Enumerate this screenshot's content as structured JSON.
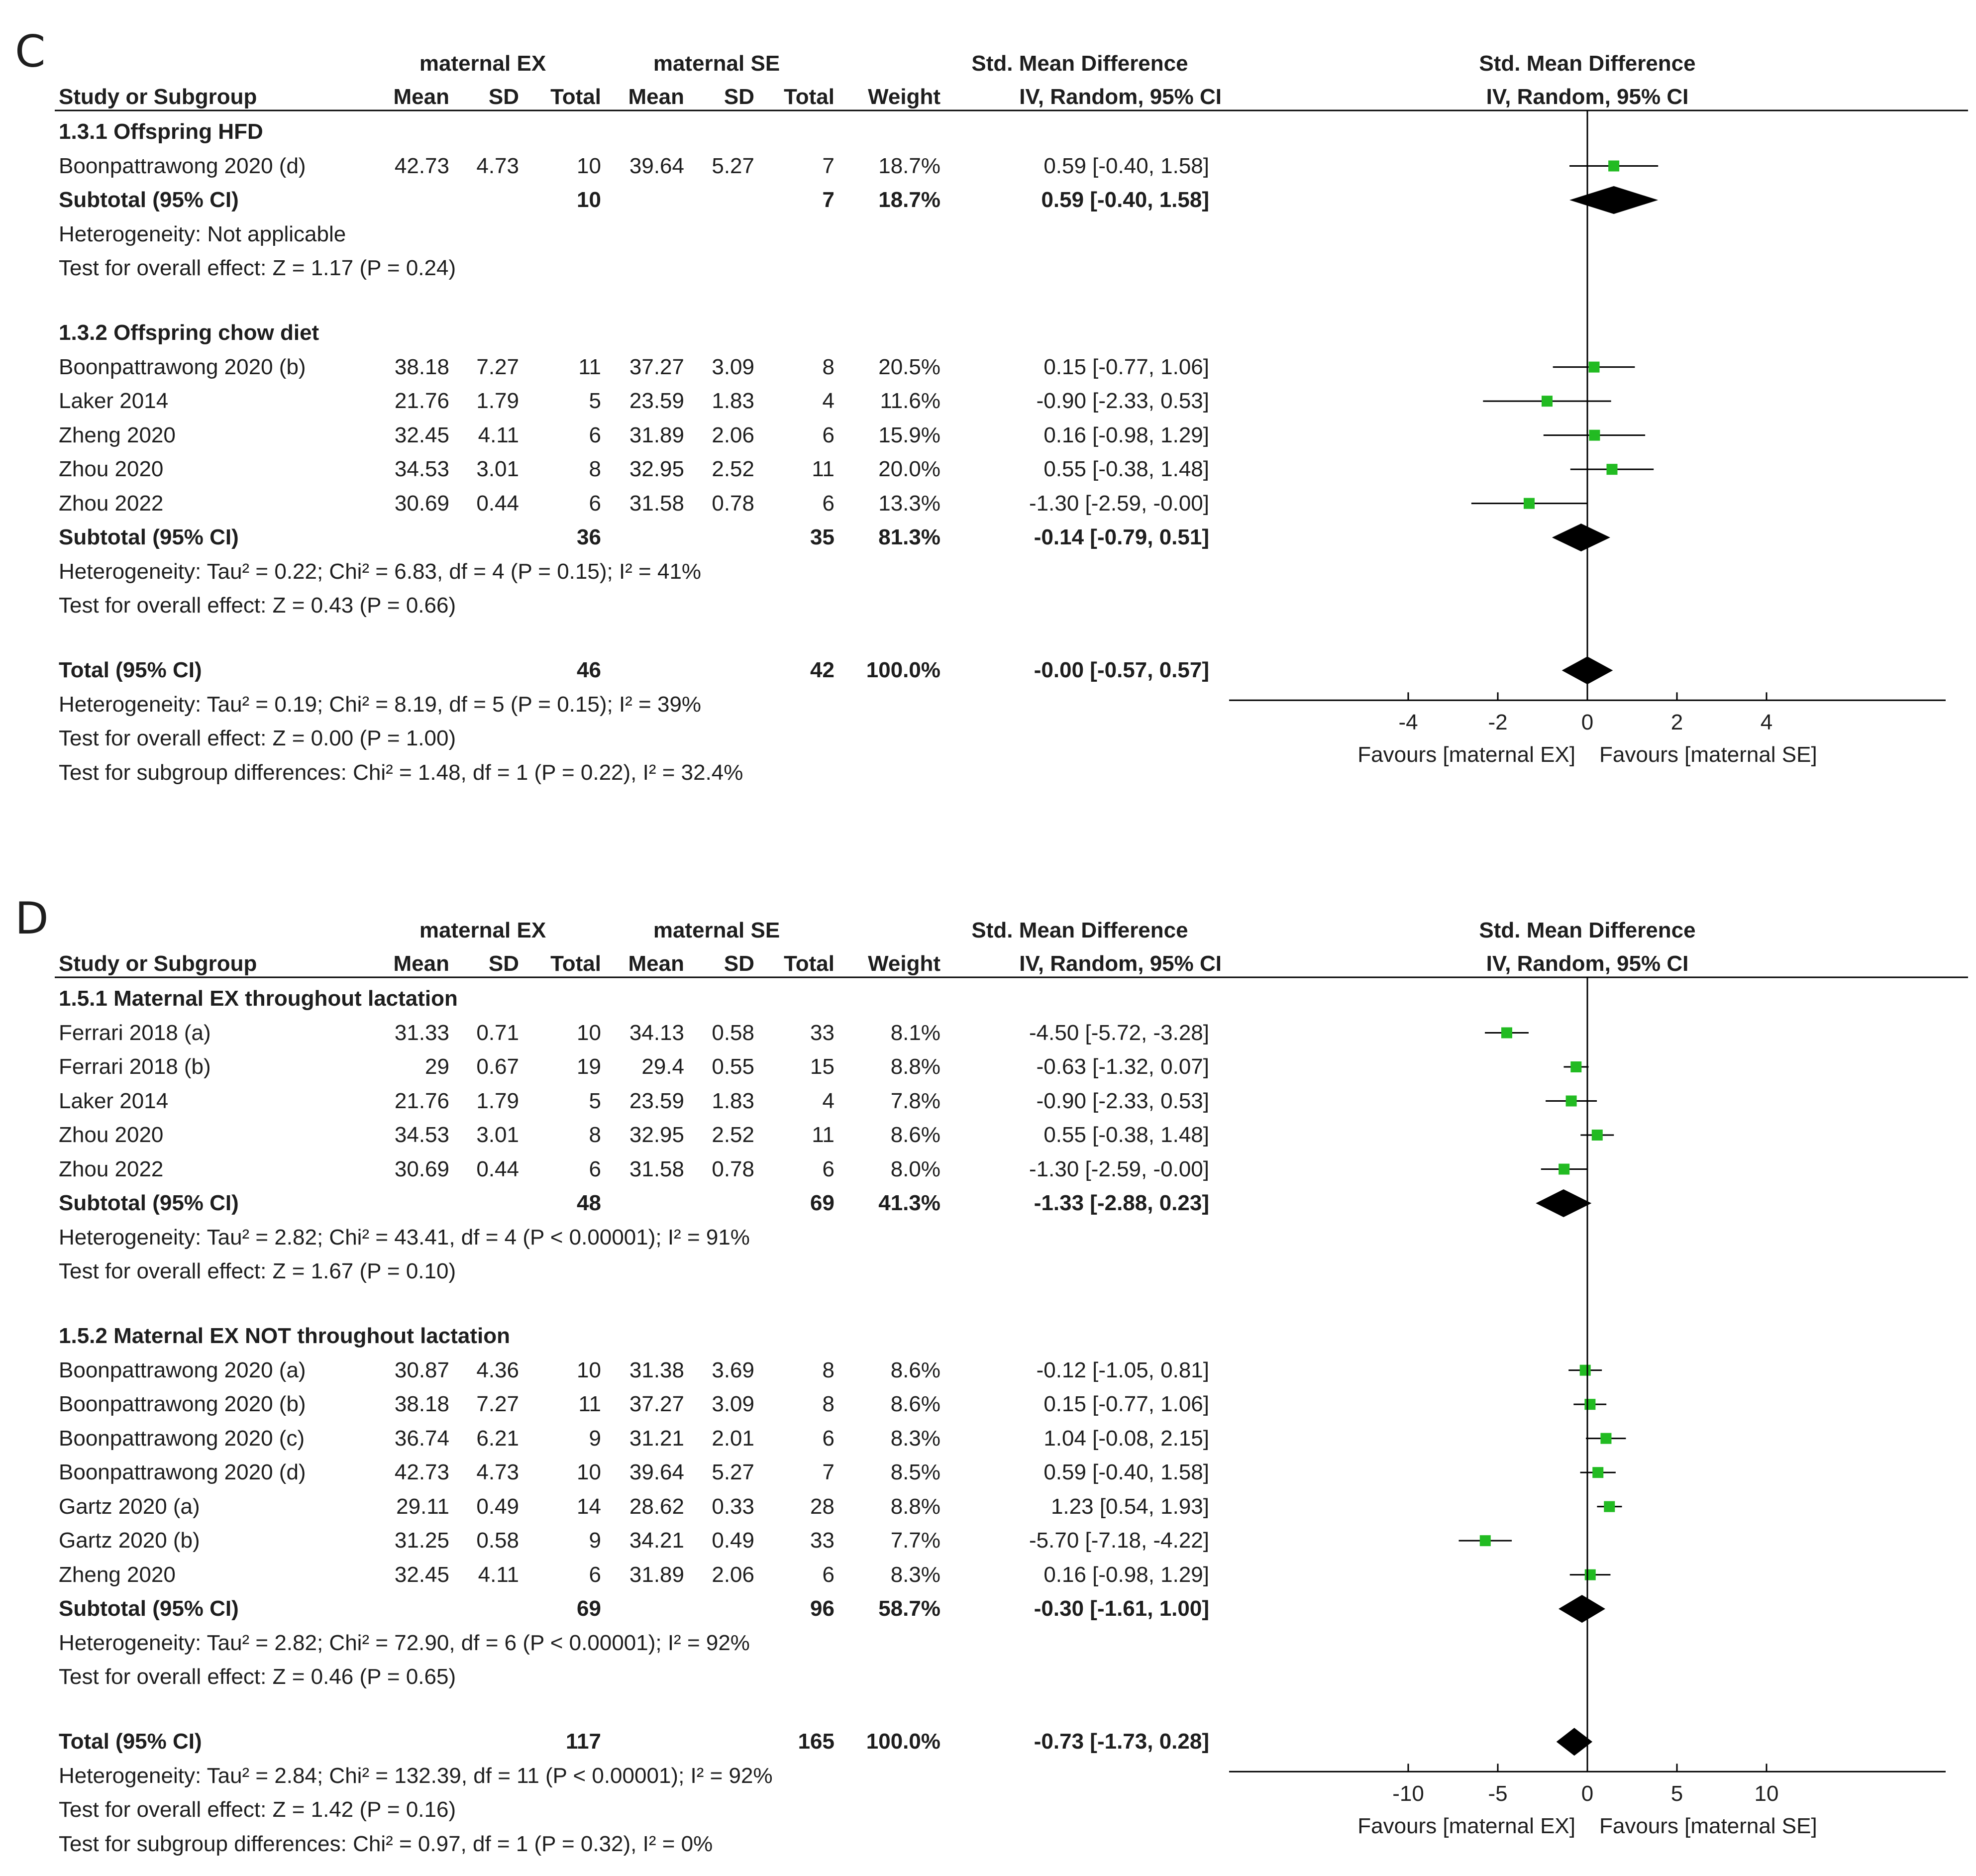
{
  "chart_data": [
    {
      "type": "forest",
      "panel_label": "C",
      "header": {
        "group1": "maternal EX",
        "group2": "maternal SE",
        "effect_col_line1": "Std. Mean Difference",
        "effect_col_line2": "IV, Random, 95% CI",
        "plot_col_line1": "Std. Mean Difference",
        "plot_col_line2": "IV, Random, 95% CI",
        "study_col": "Study or Subgroup",
        "mean": "Mean",
        "sd": "SD",
        "total": "Total",
        "weight": "Weight"
      },
      "axis": {
        "range": [
          -8,
          8
        ],
        "ticks": [
          -4,
          -2,
          0,
          2,
          4
        ],
        "tick_labels": [
          "-4",
          "-2",
          "0",
          "2",
          "4"
        ],
        "favours_left": "Favours [maternal EX]",
        "favours_right": "Favours [maternal SE]"
      },
      "rows": [
        {
          "kind": "subgroup",
          "label": "1.3.1 Offspring HFD"
        },
        {
          "kind": "study",
          "name": "Boonpattrawong 2020 (d)",
          "m1": "42.73",
          "sd1": "4.73",
          "n1": "10",
          "m2": "39.64",
          "sd2": "5.27",
          "n2": "7",
          "weight": "18.7%",
          "ci": "0.59 [-0.40, 1.58]",
          "est": 0.59,
          "lo": -0.4,
          "hi": 1.58
        },
        {
          "kind": "subtotal",
          "name": "Subtotal (95% CI)",
          "n1": "10",
          "n2": "7",
          "weight": "18.7%",
          "ci": "0.59 [-0.40, 1.58]",
          "est": 0.59,
          "lo": -0.4,
          "hi": 1.58
        },
        {
          "kind": "note",
          "text": "Heterogeneity: Not applicable"
        },
        {
          "kind": "note",
          "text": "Test for overall effect: Z = 1.17 (P = 0.24)"
        },
        {
          "kind": "subgroup",
          "label": "1.3.2 Offspring chow diet"
        },
        {
          "kind": "study",
          "name": "Boonpattrawong 2020 (b)",
          "m1": "38.18",
          "sd1": "7.27",
          "n1": "11",
          "m2": "37.27",
          "sd2": "3.09",
          "n2": "8",
          "weight": "20.5%",
          "ci": "0.15 [-0.77, 1.06]",
          "est": 0.15,
          "lo": -0.77,
          "hi": 1.06
        },
        {
          "kind": "study",
          "name": "Laker 2014",
          "m1": "21.76",
          "sd1": "1.79",
          "n1": "5",
          "m2": "23.59",
          "sd2": "1.83",
          "n2": "4",
          "weight": "11.6%",
          "ci": "-0.90 [-2.33, 0.53]",
          "est": -0.9,
          "lo": -2.33,
          "hi": 0.53
        },
        {
          "kind": "study",
          "name": "Zheng 2020",
          "m1": "32.45",
          "sd1": "4.11",
          "n1": "6",
          "m2": "31.89",
          "sd2": "2.06",
          "n2": "6",
          "weight": "15.9%",
          "ci": "0.16 [-0.98, 1.29]",
          "est": 0.16,
          "lo": -0.98,
          "hi": 1.29
        },
        {
          "kind": "study",
          "name": "Zhou 2020",
          "m1": "34.53",
          "sd1": "3.01",
          "n1": "8",
          "m2": "32.95",
          "sd2": "2.52",
          "n2": "11",
          "weight": "20.0%",
          "ci": "0.55 [-0.38, 1.48]",
          "est": 0.55,
          "lo": -0.38,
          "hi": 1.48
        },
        {
          "kind": "study",
          "name": "Zhou 2022",
          "m1": "30.69",
          "sd1": "0.44",
          "n1": "6",
          "m2": "31.58",
          "sd2": "0.78",
          "n2": "6",
          "weight": "13.3%",
          "ci": "-1.30 [-2.59, -0.00]",
          "est": -1.3,
          "lo": -2.59,
          "hi": 0.0
        },
        {
          "kind": "subtotal",
          "name": "Subtotal (95% CI)",
          "n1": "36",
          "n2": "35",
          "weight": "81.3%",
          "ci": "-0.14 [-0.79, 0.51]",
          "est": -0.14,
          "lo": -0.79,
          "hi": 0.51
        },
        {
          "kind": "note",
          "text": "Heterogeneity: Tau² = 0.22; Chi² = 6.83, df = 4 (P = 0.15); I² = 41%"
        },
        {
          "kind": "note",
          "text": "Test for overall effect: Z = 0.43 (P = 0.66)"
        },
        {
          "kind": "total",
          "name": "Total (95% CI)",
          "n1": "46",
          "n2": "42",
          "weight": "100.0%",
          "ci": "-0.00 [-0.57, 0.57]",
          "est": 0.0,
          "lo": -0.57,
          "hi": 0.57
        },
        {
          "kind": "note",
          "text": "Heterogeneity: Tau² = 0.19; Chi² = 8.19, df = 5 (P = 0.15); I² = 39%"
        },
        {
          "kind": "note",
          "text": "Test for overall effect: Z = 0.00 (P = 1.00)"
        },
        {
          "kind": "note",
          "text": "Test for subgroup differences: Chi² = 1.48, df = 1 (P = 0.22), I² = 32.4%"
        }
      ]
    },
    {
      "type": "forest",
      "panel_label": "D",
      "header": {
        "group1": "maternal EX",
        "group2": "maternal SE",
        "effect_col_line1": "Std. Mean Difference",
        "effect_col_line2": "IV, Random, 95% CI",
        "plot_col_line1": "Std. Mean Difference",
        "plot_col_line2": "IV, Random, 95% CI",
        "study_col": "Study or Subgroup",
        "mean": "Mean",
        "sd": "SD",
        "total": "Total",
        "weight": "Weight"
      },
      "axis": {
        "range": [
          -20,
          20
        ],
        "ticks": [
          -10,
          -5,
          0,
          5,
          10
        ],
        "tick_labels": [
          "-10",
          "-5",
          "0",
          "5",
          "10"
        ],
        "favours_left": "Favours [maternal EX]",
        "favours_right": "Favours [maternal SE]"
      },
      "rows": [
        {
          "kind": "subgroup",
          "label": "1.5.1 Maternal EX throughout lactation"
        },
        {
          "kind": "study",
          "name": "Ferrari 2018 (a)",
          "m1": "31.33",
          "sd1": "0.71",
          "n1": "10",
          "m2": "34.13",
          "sd2": "0.58",
          "n2": "33",
          "weight": "8.1%",
          "ci": "-4.50 [-5.72, -3.28]",
          "est": -4.5,
          "lo": -5.72,
          "hi": -3.28
        },
        {
          "kind": "study",
          "name": "Ferrari 2018 (b)",
          "m1": "29",
          "sd1": "0.67",
          "n1": "19",
          "m2": "29.4",
          "sd2": "0.55",
          "n2": "15",
          "weight": "8.8%",
          "ci": "-0.63 [-1.32, 0.07]",
          "est": -0.63,
          "lo": -1.32,
          "hi": 0.07
        },
        {
          "kind": "study",
          "name": "Laker 2014",
          "m1": "21.76",
          "sd1": "1.79",
          "n1": "5",
          "m2": "23.59",
          "sd2": "1.83",
          "n2": "4",
          "weight": "7.8%",
          "ci": "-0.90 [-2.33, 0.53]",
          "est": -0.9,
          "lo": -2.33,
          "hi": 0.53
        },
        {
          "kind": "study",
          "name": "Zhou 2020",
          "m1": "34.53",
          "sd1": "3.01",
          "n1": "8",
          "m2": "32.95",
          "sd2": "2.52",
          "n2": "11",
          "weight": "8.6%",
          "ci": "0.55 [-0.38, 1.48]",
          "est": 0.55,
          "lo": -0.38,
          "hi": 1.48
        },
        {
          "kind": "study",
          "name": "Zhou 2022",
          "m1": "30.69",
          "sd1": "0.44",
          "n1": "6",
          "m2": "31.58",
          "sd2": "0.78",
          "n2": "6",
          "weight": "8.0%",
          "ci": "-1.30 [-2.59, -0.00]",
          "est": -1.3,
          "lo": -2.59,
          "hi": 0.0
        },
        {
          "kind": "subtotal",
          "name": "Subtotal (95% CI)",
          "n1": "48",
          "n2": "69",
          "weight": "41.3%",
          "ci": "-1.33 [-2.88, 0.23]",
          "est": -1.33,
          "lo": -2.88,
          "hi": 0.23
        },
        {
          "kind": "note",
          "text": "Heterogeneity: Tau² = 2.82; Chi² = 43.41, df = 4 (P < 0.00001); I² = 91%"
        },
        {
          "kind": "note",
          "text": "Test for overall effect: Z = 1.67 (P = 0.10)"
        },
        {
          "kind": "subgroup",
          "label": "1.5.2 Maternal EX NOT throughout lactation"
        },
        {
          "kind": "study",
          "name": "Boonpattrawong 2020 (a)",
          "m1": "30.87",
          "sd1": "4.36",
          "n1": "10",
          "m2": "31.38",
          "sd2": "3.69",
          "n2": "8",
          "weight": "8.6%",
          "ci": "-0.12 [-1.05, 0.81]",
          "est": -0.12,
          "lo": -1.05,
          "hi": 0.81
        },
        {
          "kind": "study",
          "name": "Boonpattrawong 2020 (b)",
          "m1": "38.18",
          "sd1": "7.27",
          "n1": "11",
          "m2": "37.27",
          "sd2": "3.09",
          "n2": "8",
          "weight": "8.6%",
          "ci": "0.15 [-0.77, 1.06]",
          "est": 0.15,
          "lo": -0.77,
          "hi": 1.06
        },
        {
          "kind": "study",
          "name": "Boonpattrawong 2020 (c)",
          "m1": "36.74",
          "sd1": "6.21",
          "n1": "9",
          "m2": "31.21",
          "sd2": "2.01",
          "n2": "6",
          "weight": "8.3%",
          "ci": "1.04 [-0.08, 2.15]",
          "est": 1.04,
          "lo": -0.08,
          "hi": 2.15
        },
        {
          "kind": "study",
          "name": "Boonpattrawong 2020 (d)",
          "m1": "42.73",
          "sd1": "4.73",
          "n1": "10",
          "m2": "39.64",
          "sd2": "5.27",
          "n2": "7",
          "weight": "8.5%",
          "ci": "0.59 [-0.40, 1.58]",
          "est": 0.59,
          "lo": -0.4,
          "hi": 1.58
        },
        {
          "kind": "study",
          "name": "Gartz 2020 (a)",
          "m1": "29.11",
          "sd1": "0.49",
          "n1": "14",
          "m2": "28.62",
          "sd2": "0.33",
          "n2": "28",
          "weight": "8.8%",
          "ci": "1.23 [0.54, 1.93]",
          "est": 1.23,
          "lo": 0.54,
          "hi": 1.93
        },
        {
          "kind": "study",
          "name": "Gartz 2020 (b)",
          "m1": "31.25",
          "sd1": "0.58",
          "n1": "9",
          "m2": "34.21",
          "sd2": "0.49",
          "n2": "33",
          "weight": "7.7%",
          "ci": "-5.70 [-7.18, -4.22]",
          "est": -5.7,
          "lo": -7.18,
          "hi": -4.22
        },
        {
          "kind": "study",
          "name": "Zheng 2020",
          "m1": "32.45",
          "sd1": "4.11",
          "n1": "6",
          "m2": "31.89",
          "sd2": "2.06",
          "n2": "6",
          "weight": "8.3%",
          "ci": "0.16 [-0.98, 1.29]",
          "est": 0.16,
          "lo": -0.98,
          "hi": 1.29
        },
        {
          "kind": "subtotal",
          "name": "Subtotal (95% CI)",
          "n1": "69",
          "n2": "96",
          "weight": "58.7%",
          "ci": "-0.30 [-1.61, 1.00]",
          "est": -0.3,
          "lo": -1.61,
          "hi": 1.0
        },
        {
          "kind": "note",
          "text": "Heterogeneity: Tau² = 2.82; Chi² = 72.90, df = 6 (P < 0.00001); I² = 92%"
        },
        {
          "kind": "note",
          "text": "Test for overall effect: Z = 0.46 (P = 0.65)"
        },
        {
          "kind": "total",
          "name": "Total (95% CI)",
          "n1": "117",
          "n2": "165",
          "weight": "100.0%",
          "ci": "-0.73 [-1.73, 0.28]",
          "est": -0.73,
          "lo": -1.73,
          "hi": 0.28
        },
        {
          "kind": "note",
          "text": "Heterogeneity: Tau² = 2.84; Chi² = 132.39, df = 11 (P < 0.00001); I² = 92%"
        },
        {
          "kind": "note",
          "text": "Test for overall effect: Z = 1.42 (P = 0.16)"
        },
        {
          "kind": "note",
          "text": "Test for subgroup differences: Chi² = 0.97, df = 1 (P = 0.32), I² = 0%"
        }
      ]
    }
  ],
  "colors": {
    "marker": "#22bb22",
    "text": "#1e1e1e",
    "line": "#000000"
  }
}
